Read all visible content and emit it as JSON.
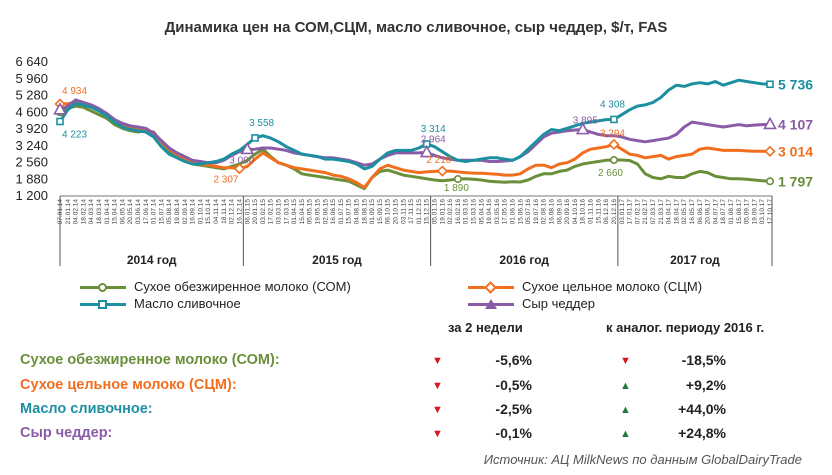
{
  "chart_data": {
    "type": "line",
    "title": "Динамика цен на СОМ,СЦМ, масло сливочное, сыр чеддер, $/т, FAS",
    "y_ticks": [
      "6 640",
      "5 960",
      "5 280",
      "4 600",
      "3 920",
      "3 240",
      "2 560",
      "1 880",
      "1 200"
    ],
    "ylim": [
      1200,
      6640
    ],
    "x_tick_labels": [
      "07.01.14",
      "21.01.14",
      "04.02.14",
      "18.02.14",
      "04.03.14",
      "18.03.14",
      "01.04.14",
      "15.04.14",
      "06.05.14",
      "20.05.14",
      "03.06.14",
      "17.06.14",
      "01.07.14",
      "15.07.14",
      "05.08.14",
      "19.08.14",
      "02.09.14",
      "16.09.14",
      "01.10.14",
      "15.10.14",
      "04.11.14",
      "18.11.14",
      "02.12.14",
      "16.12.14",
      "06.01.15",
      "20.01.15",
      "03.02.15",
      "17.02.15",
      "03.03.15",
      "17.03.15",
      "01.04.15",
      "15.04.15",
      "05.05.15",
      "19.05.15",
      "02.06.15",
      "16.06.15",
      "01.07.15",
      "15.07.15",
      "04.08.15",
      "18.08.15",
      "01.09.15",
      "15.09.15",
      "06.10.15",
      "20.10.15",
      "03.11.15",
      "17.11.15",
      "01.12.15",
      "15.12.15",
      "05.01.16",
      "19.01.16",
      "02.02.16",
      "16.02.16",
      "01.03.16",
      "15.03.16",
      "05.04.16",
      "19.04.16",
      "03.05.16",
      "17.05.16",
      "01.06.16",
      "15.06.16",
      "05.07.16",
      "19.07.16",
      "02.08.16",
      "16.08.16",
      "06.09.16",
      "20.09.16",
      "04.10.16",
      "18.10.16",
      "01.11.16",
      "15.11.16",
      "06.12.16",
      "20.12.16",
      "03.01.17",
      "17.01.17",
      "07.02.17",
      "21.02.17",
      "07.03.17",
      "21.03.17",
      "04.04.17",
      "18.04.17",
      "02.05.17",
      "16.05.17",
      "06.06.17",
      "20.06.17",
      "04.07.17",
      "18.07.17",
      "01.08.17",
      "15.08.17",
      "05.09.17",
      "19.09.17",
      "03.10.17",
      "17.10.17"
    ],
    "year_labels": [
      "2014 год",
      "2015 год",
      "2016 год",
      "2017 год"
    ],
    "series": [
      {
        "name": "Сухое обезжиренное молоко (СОМ)",
        "color": "#6a8f3a",
        "values": [
          4600,
          4750,
          4850,
          4800,
          4650,
          4500,
          4350,
          4100,
          3950,
          3850,
          3800,
          3850,
          3800,
          3400,
          3000,
          2800,
          2650,
          2500,
          2450,
          2400,
          2350,
          2300,
          2400,
          2500,
          2650,
          2900,
          3100,
          2800,
          2550,
          2450,
          2300,
          2100,
          2050,
          2000,
          1950,
          1900,
          1850,
          1800,
          1650,
          1500,
          1950,
          2200,
          2250,
          2150,
          2050,
          2000,
          1950,
          1900,
          1850,
          1820,
          1850,
          1890,
          1900,
          1880,
          1850,
          1800,
          1780,
          1760,
          1780,
          1770,
          1850,
          2000,
          2100,
          2100,
          2200,
          2250,
          2400,
          2500,
          2550,
          2600,
          2650,
          2660,
          2660,
          2640,
          2500,
          2100,
          1950,
          1900,
          2000,
          1950,
          1950,
          2100,
          2200,
          2150,
          2000,
          1950,
          1900,
          1900,
          1880,
          1850,
          1820,
          1797
        ]
      },
      {
        "name": "Сухое цельное молоко (СЦМ)",
        "color": "#f26e1f",
        "values": [
          4934,
          4950,
          4980,
          4950,
          4850,
          4700,
          4500,
          4200,
          4050,
          3950,
          3900,
          3850,
          3750,
          3400,
          3100,
          2900,
          2700,
          2600,
          2500,
          2450,
          2400,
          2350,
          2350,
          2307,
          2400,
          2700,
          2950,
          2750,
          2550,
          2450,
          2350,
          2300,
          2250,
          2200,
          2150,
          2050,
          2000,
          1900,
          1750,
          1550,
          1950,
          2300,
          2450,
          2350,
          2250,
          2200,
          2150,
          2180,
          2200,
          2210,
          2210,
          2180,
          2150,
          2130,
          2120,
          2100,
          2080,
          2050,
          2050,
          2100,
          2300,
          2450,
          2450,
          2350,
          2500,
          2550,
          2700,
          2950,
          3100,
          3150,
          3200,
          3294,
          3100,
          2900,
          2850,
          2750,
          2800,
          2850,
          2700,
          2800,
          2850,
          2900,
          3100,
          3150,
          3100,
          3050,
          3050,
          3050,
          3030,
          3020,
          3015,
          3014
        ]
      },
      {
        "name": "Масло сливочное",
        "color": "#1c8fa0",
        "values": [
          4223,
          4700,
          4950,
          4900,
          4800,
          4650,
          4450,
          4200,
          4000,
          3900,
          3850,
          3800,
          3600,
          3200,
          2900,
          2750,
          2600,
          2500,
          2500,
          2550,
          2600,
          2700,
          2900,
          3050,
          3300,
          3558,
          3650,
          3550,
          3400,
          3200,
          3050,
          2900,
          2850,
          2800,
          2700,
          2700,
          2650,
          2600,
          2500,
          2300,
          2400,
          2700,
          2950,
          3050,
          3050,
          3050,
          3150,
          3314,
          3200,
          3000,
          2800,
          2650,
          2600,
          2650,
          2700,
          2750,
          2750,
          2700,
          2650,
          2800,
          3100,
          3400,
          3700,
          3900,
          3850,
          3950,
          4050,
          4150,
          4200,
          4250,
          4300,
          4308,
          4500,
          4700,
          4850,
          4900,
          5000,
          5200,
          5500,
          5700,
          5650,
          5750,
          5800,
          5750,
          5850,
          5700,
          5800,
          5900,
          5850,
          5800,
          5750,
          5736
        ]
      },
      {
        "name": "Сыр чеддер",
        "color": "#8a5ca8",
        "values": [
          4700,
          4850,
          5100,
          5000,
          4900,
          4750,
          4550,
          4300,
          4150,
          4050,
          4000,
          3950,
          3750,
          3450,
          3150,
          2950,
          2800,
          2650,
          2600,
          2550,
          2550,
          2650,
          2850,
          3000,
          3090,
          3100,
          3150,
          3150,
          3100,
          3050,
          2950,
          2900,
          2850,
          2800,
          2750,
          2750,
          2700,
          2650,
          2550,
          2450,
          2500,
          2700,
          2850,
          2950,
          2950,
          2950,
          2950,
          2964,
          2850,
          2750,
          2700,
          2650,
          2650,
          2650,
          2650,
          2600,
          2600,
          2620,
          2650,
          2800,
          3000,
          3300,
          3600,
          3750,
          3800,
          3850,
          3880,
          3895,
          3800,
          3700,
          3650,
          3650,
          3600,
          3500,
          3450,
          3400,
          3450,
          3500,
          3550,
          3700,
          4000,
          4200,
          4150,
          4100,
          4050,
          4000,
          4050,
          4100,
          4050,
          4080,
          4100,
          4107
        ]
      }
    ],
    "end_labels": [
      "5 736",
      "4 107",
      "3 014",
      "1 797"
    ],
    "annotations": [
      "4 934",
      "4 223",
      "3 558",
      "3 090",
      "2 307",
      "3 314",
      "2 964",
      "2 210",
      "1 890",
      "4 308",
      "3 895",
      "3 294",
      "2 660"
    ]
  },
  "legend": [
    {
      "label": "Сухое обезжиренное молоко (СОМ)",
      "color": "#6a8f3a"
    },
    {
      "label": "Сухое цельное молоко (СЦМ)",
      "color": "#f26e1f"
    },
    {
      "label": "Масло сливочное",
      "color": "#1c8fa0"
    },
    {
      "label": "Сыр чеддер",
      "color": "#8a5ca8"
    }
  ],
  "table": {
    "col1_header": "за 2 недели",
    "col2_header": "к аналог. периоду 2016 г.",
    "rows": [
      {
        "label": "Сухое обезжиренное молоко (СОМ):",
        "color": "#6a8f3a",
        "d1": "-5,6%",
        "d1_dir": "down",
        "d2": "-18,5%",
        "d2_dir": "down"
      },
      {
        "label": "Сухое цельное молоко (СЦМ):",
        "color": "#f26e1f",
        "d1": "-0,5%",
        "d1_dir": "down",
        "d2": "+9,2%",
        "d2_dir": "up"
      },
      {
        "label": "Масло сливочное:",
        "color": "#1c8fa0",
        "d1": "-2,5%",
        "d1_dir": "down",
        "d2": "+44,0%",
        "d2_dir": "up"
      },
      {
        "label": "Сыр чеддер:",
        "color": "#8a5ca8",
        "d1": "-0,1%",
        "d1_dir": "down",
        "d2": "+24,8%",
        "d2_dir": "up"
      }
    ]
  },
  "source": "Источник: АЦ MilkNews по данным GlobalDairyTrade"
}
